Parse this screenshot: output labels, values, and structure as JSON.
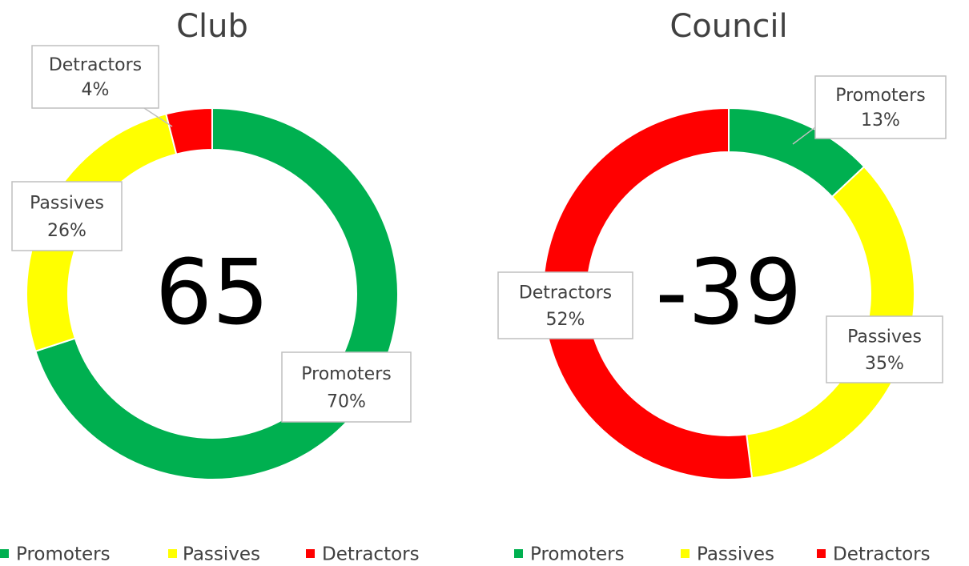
{
  "chart_data": [
    {
      "type": "donut",
      "title": "Club",
      "center_label": 65,
      "categories": [
        "Promoters",
        "Passives",
        "Detractors"
      ],
      "values": [
        70,
        26,
        4
      ],
      "value_labels": [
        "70%",
        "26%",
        "4%"
      ],
      "colors": [
        "#00b050",
        "#ffff00",
        "#ff0000"
      ],
      "legend": "bottom"
    },
    {
      "type": "donut",
      "title": "Council",
      "center_label": -39,
      "categories": [
        "Promoters",
        "Passives",
        "Detractors"
      ],
      "values": [
        13,
        35,
        52
      ],
      "value_labels": [
        "13%",
        "35%",
        "52%"
      ],
      "colors": [
        "#00b050",
        "#ffff00",
        "#ff0000"
      ],
      "legend": "bottom"
    }
  ]
}
